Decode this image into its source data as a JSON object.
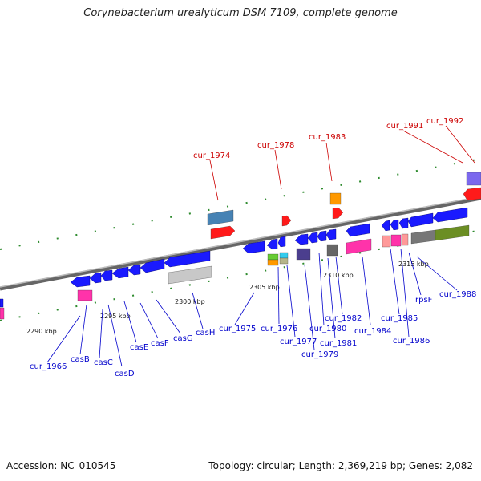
{
  "title": "Corynebacterium urealyticum DSM 7109, complete genome",
  "footer": {
    "accession": "Accession: NC_010545",
    "summary": "Topology: circular; Length: 2,369,219 bp; Genes: 2,082"
  },
  "colors": {
    "axis": "#888888",
    "tick_major": "#2e8b2e",
    "label_red": "#cc0000",
    "label_blue": "#0000cc",
    "gene_blue": "#1a1aff",
    "gene_red": "#ff1a1a"
  },
  "axis_ticks": [
    {
      "label": "2290 kbp"
    },
    {
      "label": "2295 kbp"
    },
    {
      "label": "2300 kbp"
    },
    {
      "label": "2305 kbp"
    },
    {
      "label": "2310 kbp"
    },
    {
      "label": "2315 kbp"
    }
  ],
  "gene_labels_top": [
    "cur_1974",
    "cur_1978",
    "cur_1983",
    "cur_1991",
    "cur_1992"
  ],
  "gene_labels_bottom": [
    "cur_1966",
    "casB",
    "casC",
    "casD",
    "casE",
    "casF",
    "casG",
    "casH",
    "cur_1975",
    "cur_1976",
    "cur_1977",
    "cur_1979",
    "cur_1980",
    "cur_1981",
    "cur_1982",
    "cur_1984",
    "cur_1985",
    "cur_1986",
    "rpsF",
    "cur_1988"
  ]
}
